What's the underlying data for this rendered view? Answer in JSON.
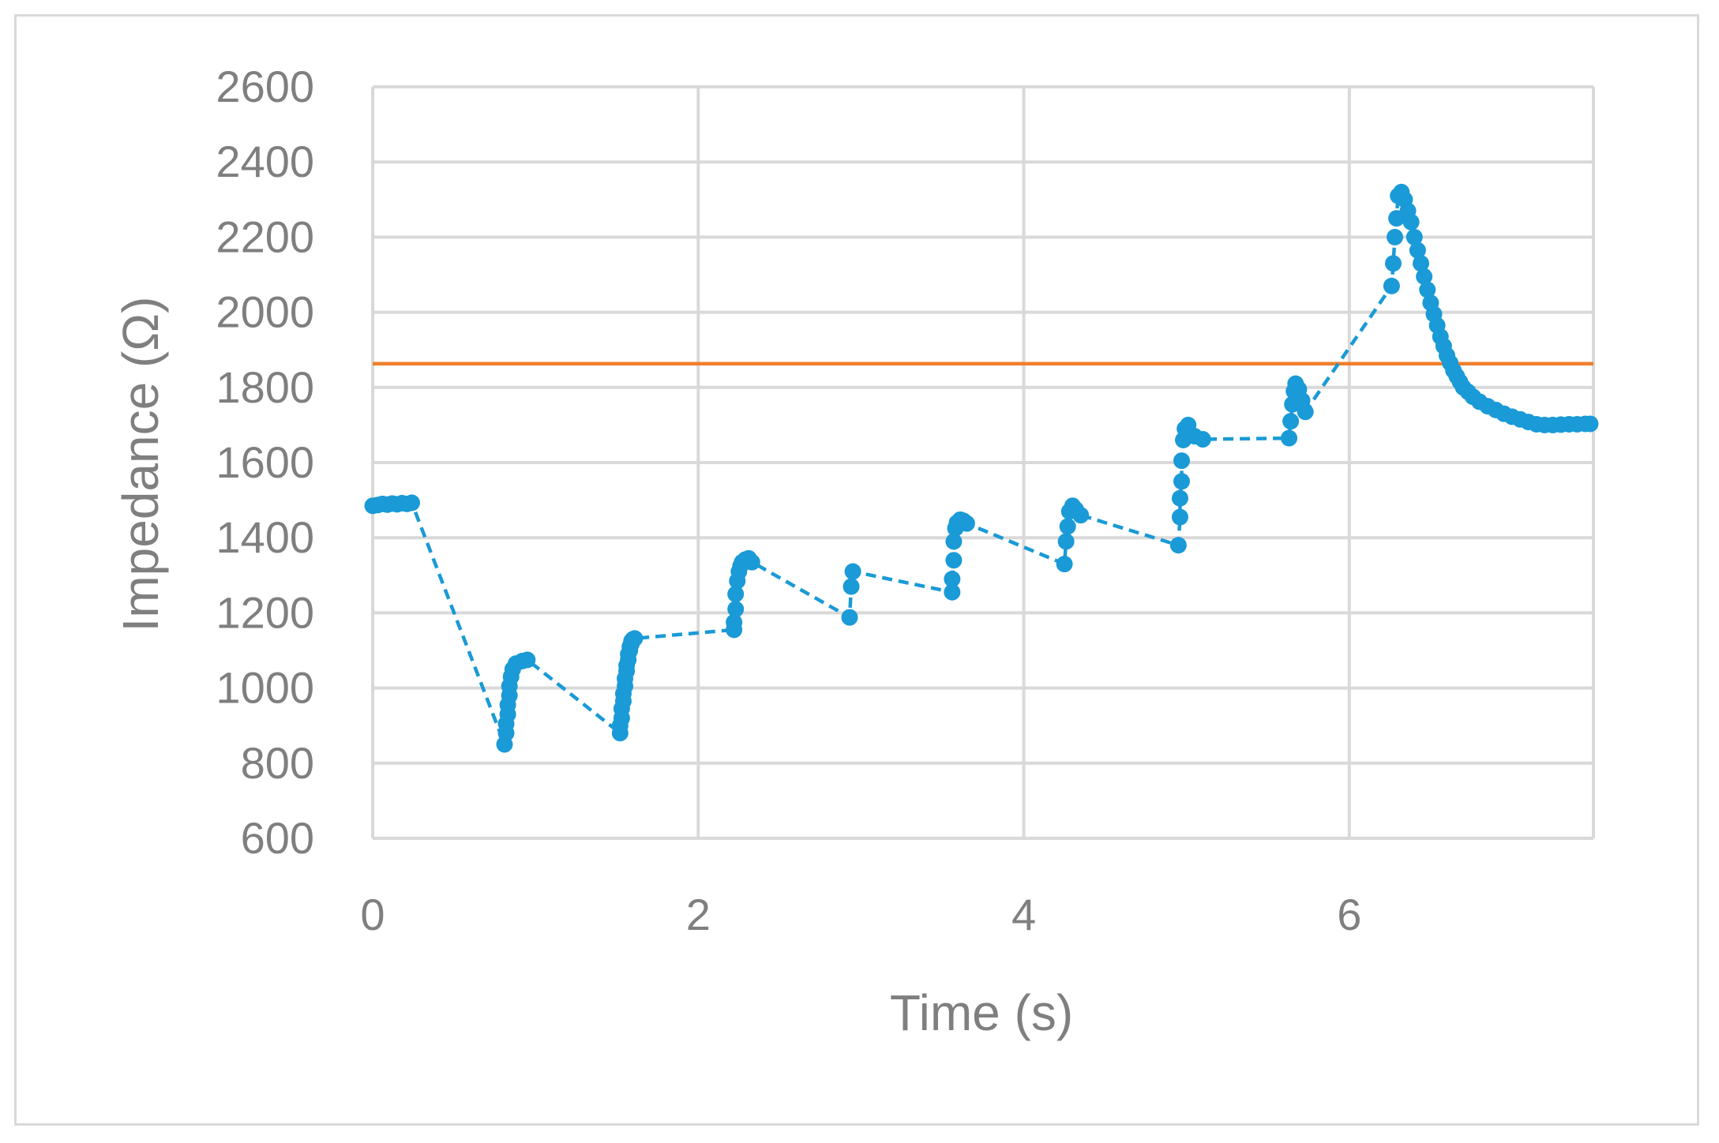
{
  "chart_data": {
    "type": "scatter",
    "title": "",
    "xlabel": "Time (s)",
    "ylabel": "Impedance (Ω)",
    "xlim": [
      0,
      7.5
    ],
    "ylim": [
      600,
      2600
    ],
    "xticks": [
      0,
      2,
      4,
      6
    ],
    "yticks": [
      600,
      800,
      1000,
      1200,
      1400,
      1600,
      1800,
      2000,
      2200,
      2400,
      2600
    ],
    "xtick_labels": [
      "0",
      "2",
      "4",
      "6"
    ],
    "ytick_labels": [
      "600",
      "800",
      "1000",
      "1200",
      "1400",
      "1600",
      "1800",
      "2000",
      "2200",
      "2400",
      "2600"
    ],
    "grid": true,
    "legend": "none",
    "colors": {
      "series": "#1a9ad6",
      "threshold": "#f07f2d",
      "grid": "#d9d9d9",
      "text": "#7f7f7f"
    },
    "series": [
      {
        "style": "markers with dashed line",
        "x": [
          0.0,
          0.03,
          0.06,
          0.09,
          0.12,
          0.15,
          0.18,
          0.21,
          0.24,
          0.81,
          0.82,
          0.82,
          0.83,
          0.83,
          0.84,
          0.84,
          0.85,
          0.86,
          0.88,
          0.92,
          0.95,
          1.52,
          1.52,
          1.53,
          1.53,
          1.54,
          1.54,
          1.55,
          1.55,
          1.56,
          1.56,
          1.57,
          1.57,
          1.58,
          1.58,
          1.59,
          1.59,
          1.6,
          1.61,
          2.22,
          2.22,
          2.23,
          2.23,
          2.24,
          2.25,
          2.26,
          2.27,
          2.29,
          2.31,
          2.33,
          2.93,
          2.94,
          2.95,
          3.56,
          3.56,
          3.57,
          3.57,
          3.58,
          3.59,
          3.61,
          3.63,
          3.65,
          4.25,
          4.26,
          4.27,
          4.28,
          4.3,
          4.32,
          4.35,
          4.95,
          4.96,
          4.96,
          4.97,
          4.97,
          4.98,
          4.99,
          5.01,
          5.05,
          5.1,
          5.63,
          5.64,
          5.65,
          5.66,
          5.67,
          5.69,
          5.71,
          5.73,
          6.26,
          6.27,
          6.28,
          6.29,
          6.3,
          6.32,
          6.34,
          6.36,
          6.38,
          6.4,
          6.42,
          6.44,
          6.46,
          6.48,
          6.5,
          6.52,
          6.54,
          6.56,
          6.58,
          6.6,
          6.62,
          6.64,
          6.66,
          6.68,
          6.7,
          6.73,
          6.76,
          6.8,
          6.85,
          6.9,
          6.95,
          7.0,
          7.05,
          7.1,
          7.15,
          7.2,
          7.25,
          7.3,
          7.35,
          7.4,
          7.45,
          7.48
        ],
        "y": [
          1485,
          1487,
          1490,
          1488,
          1491,
          1489,
          1492,
          1490,
          1493,
          850,
          880,
          905,
          930,
          955,
          980,
          1005,
          1030,
          1050,
          1065,
          1072,
          1075,
          880,
          900,
          920,
          945,
          965,
          985,
          1005,
          1025,
          1045,
          1060,
          1075,
          1090,
          1100,
          1110,
          1118,
          1125,
          1130,
          1132,
          1155,
          1175,
          1210,
          1250,
          1285,
          1310,
          1325,
          1335,
          1342,
          1345,
          1335,
          1188,
          1270,
          1310,
          1255,
          1290,
          1340,
          1390,
          1425,
          1440,
          1448,
          1445,
          1438,
          1330,
          1390,
          1430,
          1470,
          1485,
          1475,
          1460,
          1380,
          1455,
          1505,
          1550,
          1605,
          1660,
          1690,
          1700,
          1670,
          1662,
          1665,
          1710,
          1755,
          1790,
          1810,
          1795,
          1765,
          1735,
          2070,
          2130,
          2200,
          2250,
          2310,
          2320,
          2300,
          2270,
          2240,
          2200,
          2165,
          2130,
          2095,
          2060,
          2025,
          1995,
          1965,
          1935,
          1910,
          1885,
          1865,
          1845,
          1830,
          1815,
          1800,
          1788,
          1775,
          1762,
          1750,
          1740,
          1730,
          1722,
          1715,
          1708,
          1702,
          1700,
          1700,
          1701,
          1702,
          1702,
          1703,
          1703
        ]
      },
      {
        "style": "solid horizontal line",
        "x": [
          0,
          7.5
        ],
        "y": [
          1863,
          1863
        ]
      }
    ]
  }
}
